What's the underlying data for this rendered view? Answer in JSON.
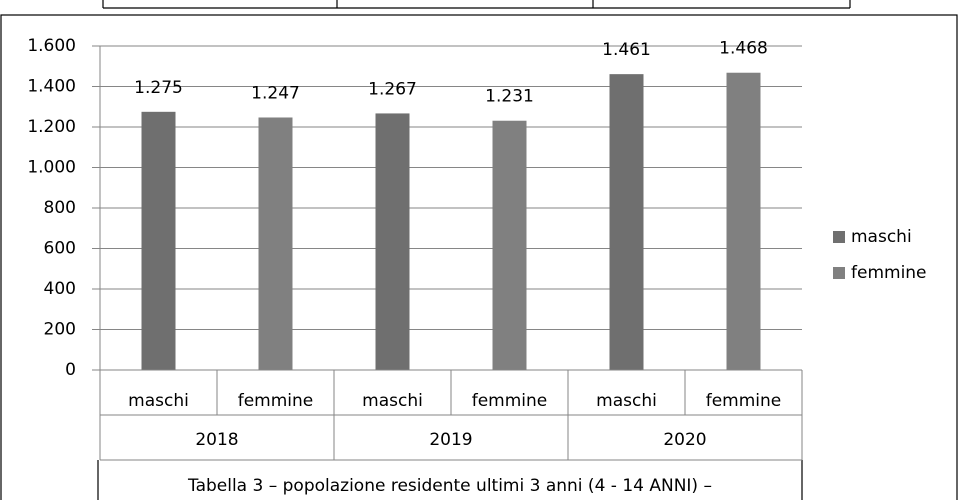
{
  "chart_data": {
    "type": "bar",
    "categories": [
      "2018",
      "2019",
      "2020"
    ],
    "series": [
      {
        "name": "maschi",
        "color": "#6f6f6f",
        "values": [
          1275,
          1267,
          1461
        ],
        "value_labels": [
          "1.275",
          "1.267",
          "1.461"
        ]
      },
      {
        "name": "femmine",
        "color": "#808080",
        "values": [
          1247,
          1231,
          1468
        ],
        "value_labels": [
          "1.247",
          "1.231",
          "1.468"
        ]
      }
    ],
    "ylim": [
      0,
      1600
    ],
    "yticks": [
      0,
      200,
      400,
      600,
      800,
      {
        "value": 1000,
        "label": "1.000"
      },
      {
        "value": 1200,
        "label": "1.200"
      },
      {
        "value": 1400,
        "label": "1.400"
      },
      {
        "value": 1600,
        "label": "1.600"
      }
    ],
    "grid": true,
    "legend": "right",
    "caption": "Tabella 3 – popolazione residente ultimi 3 anni (4 - 14 ANNI) –"
  }
}
